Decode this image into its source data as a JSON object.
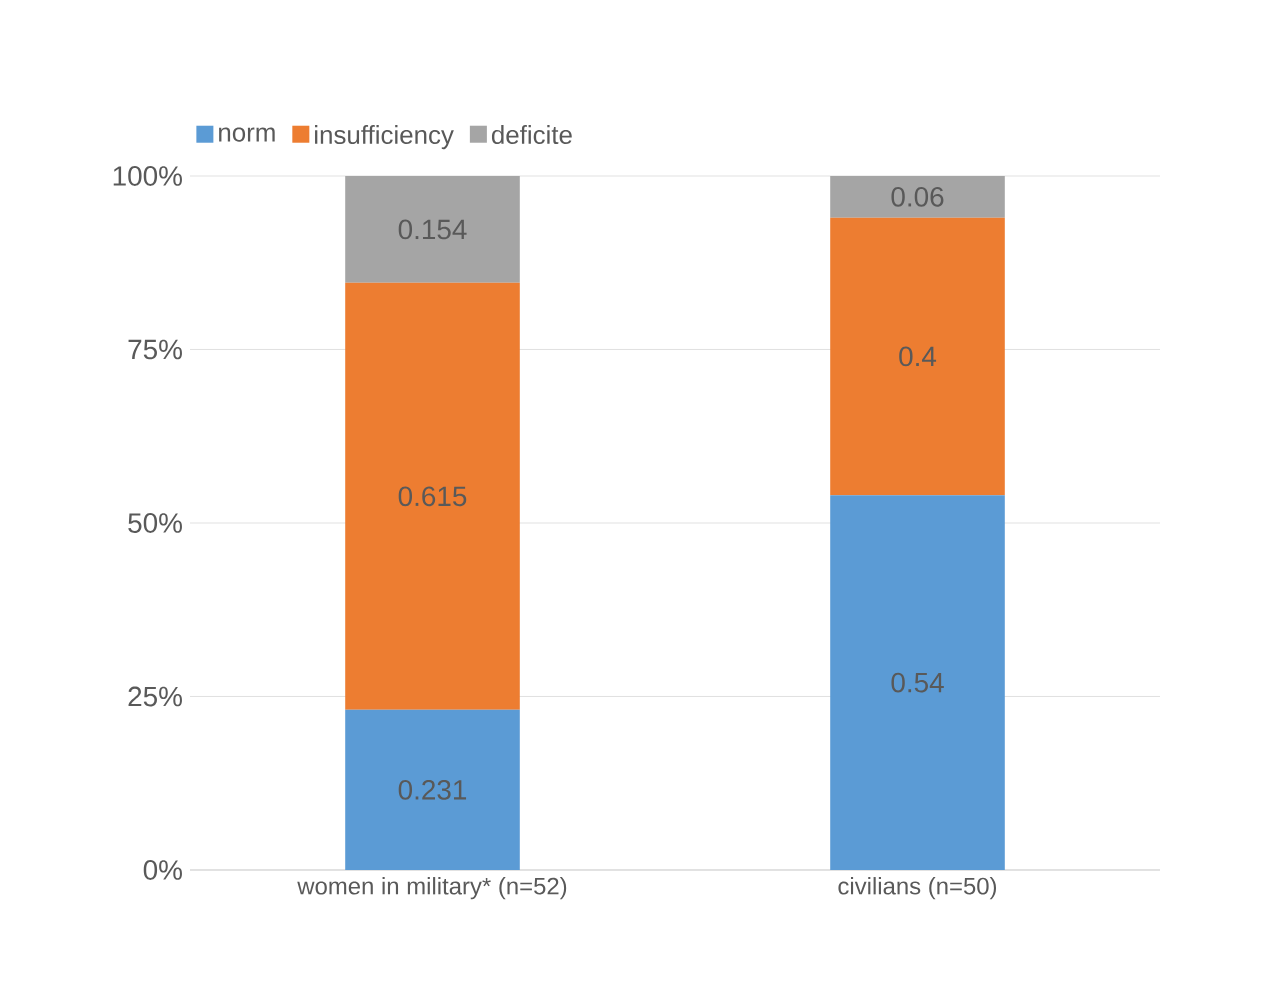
{
  "chart_data": {
    "type": "bar",
    "stacked": true,
    "categories": [
      "women in military* (n=52)",
      "civilians (n=50)"
    ],
    "series": [
      {
        "name": "norm",
        "color": "#5b9bd5",
        "values": [
          0.231,
          0.54
        ]
      },
      {
        "name": "insufficiency",
        "color": "#ed7d31",
        "values": [
          0.615,
          0.4
        ]
      },
      {
        "name": "deficite",
        "color": "#a5a5a5",
        "values": [
          0.154,
          0.06
        ]
      }
    ],
    "ylim": [
      0,
      1
    ],
    "yticks": [
      {
        "value": 0,
        "label": "0%"
      },
      {
        "value": 0.25,
        "label": "25%"
      },
      {
        "value": 0.5,
        "label": "50%"
      },
      {
        "value": 0.75,
        "label": "75%"
      },
      {
        "value": 1,
        "label": "100%"
      }
    ],
    "grid": "y",
    "legend": "top left",
    "data_labels": true
  }
}
